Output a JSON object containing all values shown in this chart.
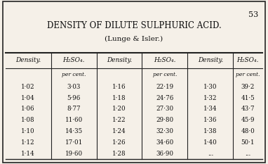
{
  "page_number": "53",
  "title": "DENSITY OF DILUTE SULPHURIC ACID.",
  "subtitle": "(Lunge & Isler.)",
  "col_headers": [
    "Density.",
    "H₂SO₄.",
    "Density.",
    "H₂SO₄.",
    "Density.",
    "H₂SO₄."
  ],
  "sub_header": "per cent.",
  "col1_density": [
    "1·02",
    "1·04",
    "1·06",
    "1·08",
    "1·10",
    "1·12",
    "1·14"
  ],
  "col1_h2so4": [
    "3·03",
    "5·96",
    "8·77",
    "11·60",
    "14·35",
    "17·01",
    "19·60"
  ],
  "col2_density": [
    "1·16",
    "1·18",
    "1·20",
    "1·22",
    "1·24",
    "1·26",
    "1·28"
  ],
  "col2_h2so4": [
    "22·19",
    "24·76",
    "27·30",
    "29·80",
    "32·30",
    "34·60",
    "36·90"
  ],
  "col3_density": [
    "1·30",
    "1·32",
    "1·34",
    "1·36",
    "1·38",
    "1·40",
    "..."
  ],
  "col3_h2so4": [
    "39·2",
    "41·5",
    "43·7",
    "45·9",
    "48·0",
    "50·1",
    "..."
  ],
  "bg_color": "#f5f0e8",
  "border_color": "#222222",
  "text_color": "#111111"
}
